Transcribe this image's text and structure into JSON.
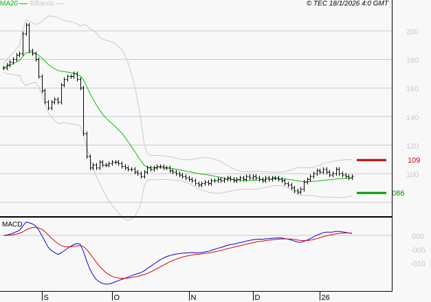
{
  "chart_data": {
    "type": "ohlc-bar",
    "legend": [
      {
        "name": "MA20",
        "color": "#00c000"
      },
      {
        "name": "BBands",
        "color": "#c8c8c8"
      }
    ],
    "copyright": "© TEC 18/1/2026 4:0 GMT",
    "price_axis": {
      "ticks": [
        200,
        180,
        160,
        140,
        120,
        100,
        80
      ],
      "tick_labels": [
        "200",
        "180",
        "160",
        "140",
        "120",
        "100",
        ""
      ],
      "ylim": [
        70,
        220
      ],
      "grid": true
    },
    "x_ticks": [
      "S",
      "O",
      "N",
      "D",
      "26"
    ],
    "x_tick_bar_index": [
      12,
      34,
      58,
      78,
      99
    ],
    "closes": [
      174,
      176,
      178,
      180,
      183,
      184,
      198,
      204,
      186,
      184,
      180,
      168,
      158,
      150,
      146,
      150,
      152,
      150,
      162,
      166,
      168,
      168,
      170,
      166,
      160,
      128,
      112,
      104,
      106,
      104,
      108,
      106,
      106,
      107,
      108,
      108,
      107,
      105,
      104,
      103,
      103,
      101,
      100,
      98,
      101,
      104,
      103,
      104,
      105,
      105,
      104,
      104,
      102,
      101,
      100,
      99,
      98,
      97,
      96,
      95,
      93,
      92,
      93,
      94,
      93,
      95,
      95,
      96,
      95,
      96,
      97,
      96,
      95,
      96,
      97,
      96,
      98,
      97,
      98,
      97,
      96,
      95,
      97,
      96,
      97,
      97,
      96,
      95,
      93,
      92,
      90,
      88,
      87,
      89,
      94,
      96,
      98,
      100,
      102,
      101,
      103,
      101,
      99,
      100,
      103,
      100,
      99,
      98,
      97,
      98
    ],
    "levels": [
      {
        "label": "109",
        "value": 109.5,
        "color": "#cc0000"
      },
      {
        "label": "086",
        "value": 86.5,
        "color": "#009900"
      }
    ],
    "macd": {
      "title": "MACD",
      "tick_values": [
        0,
        -0.05,
        -0.1
      ],
      "tick_labels": [
        "000",
        "-005",
        "-010"
      ],
      "macd_color": "#0000dd",
      "signal_color": "#dd0000"
    }
  }
}
